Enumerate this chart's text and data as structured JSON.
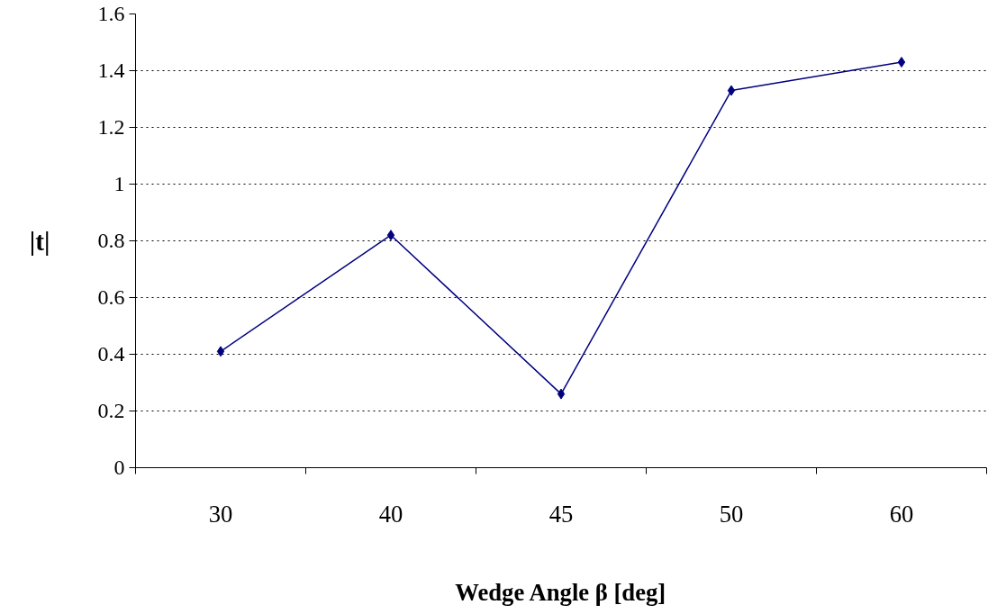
{
  "chart_data": {
    "type": "line",
    "xlabel": "Wedge Angle β [deg]",
    "ylabel": "|t|",
    "categories": [
      "30",
      "40",
      "45",
      "50",
      "60"
    ],
    "series": [
      {
        "color": "#000080",
        "values": [
          0.41,
          0.82,
          0.26,
          1.33,
          1.43
        ]
      }
    ],
    "ylim": [
      0,
      1.6
    ],
    "yticks": [
      0,
      0.2,
      0.4,
      0.6,
      0.8,
      1,
      1.2,
      1.4,
      1.6
    ],
    "grid": "y",
    "marker": "diamond",
    "line_style": "solid"
  }
}
